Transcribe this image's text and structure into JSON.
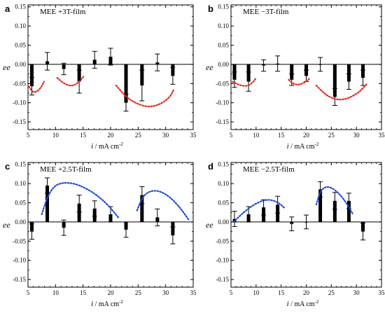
{
  "chart_data": [
    {
      "type": "bar",
      "letter": "a",
      "title": "MEE +3T-film",
      "ylabel": "ee",
      "xlabel_var": "i",
      "xlabel_unit": "/ mA cm",
      "xlabel_exp": "-2",
      "xlim": [
        5,
        35
      ],
      "ylim": [
        -0.17,
        0.155
      ],
      "xticks": [
        5,
        10,
        15,
        20,
        25,
        30,
        35
      ],
      "yticks": [
        -0.15,
        -0.1,
        -0.05,
        0.0,
        0.05,
        0.1,
        0.15
      ],
      "ytick_labels": [
        "-0.15",
        "-0.10",
        "-0.05",
        "0.00",
        "0.05",
        "0.10",
        "0.15"
      ],
      "points": [
        {
          "x": 5.7,
          "y": -0.057,
          "err": 0.023
        },
        {
          "x": 8.5,
          "y": 0.008,
          "err": 0.023
        },
        {
          "x": 11.5,
          "y": -0.012,
          "err": 0.015
        },
        {
          "x": 14.3,
          "y": -0.045,
          "err": 0.03
        },
        {
          "x": 17.1,
          "y": 0.012,
          "err": 0.022
        },
        {
          "x": 20.0,
          "y": 0.02,
          "err": 0.022
        },
        {
          "x": 22.8,
          "y": -0.1,
          "err": 0.022
        },
        {
          "x": 25.7,
          "y": -0.055,
          "err": 0.04
        },
        {
          "x": 28.5,
          "y": 0.005,
          "err": 0.022
        },
        {
          "x": 31.3,
          "y": -0.03,
          "err": 0.022
        }
      ],
      "fit_curves": [
        {
          "color": "#e8281a",
          "points": [
            [
              5.2,
              -0.058
            ],
            [
              5.8,
              -0.072
            ],
            [
              6.5,
              -0.072
            ],
            [
              7.3,
              -0.062
            ],
            [
              7.9,
              -0.045
            ]
          ]
        },
        {
          "color": "#e8281a",
          "points": [
            [
              10.3,
              -0.035
            ],
            [
              11.5,
              -0.05
            ],
            [
              12.8,
              -0.057
            ],
            [
              14.0,
              -0.05
            ],
            [
              15.2,
              -0.03
            ]
          ]
        },
        {
          "color": "#e8281a",
          "points": [
            [
              21.0,
              -0.055
            ],
            [
              22.8,
              -0.085
            ],
            [
              24.8,
              -0.103
            ],
            [
              27.0,
              -0.112
            ],
            [
              29.2,
              -0.103
            ],
            [
              30.8,
              -0.085
            ],
            [
              31.5,
              -0.065
            ]
          ]
        }
      ]
    },
    {
      "type": "bar",
      "letter": "b",
      "title": "MEE −3T-film",
      "ylabel": "ee",
      "xlabel_var": "i",
      "xlabel_unit": "/ mA cm",
      "xlabel_exp": "-2",
      "xlim": [
        5,
        35
      ],
      "ylim": [
        -0.17,
        0.155
      ],
      "xticks": [
        5,
        10,
        15,
        20,
        25,
        30,
        35
      ],
      "yticks": [
        -0.15,
        -0.1,
        -0.05,
        0.0,
        0.05,
        0.1,
        0.15
      ],
      "ytick_labels": [
        "-0.15",
        "-0.10",
        "-0.05",
        "0.00",
        "0.05",
        "0.10",
        "0.15"
      ],
      "points": [
        {
          "x": 5.7,
          "y": -0.04,
          "err": 0.02
        },
        {
          "x": 8.5,
          "y": -0.045,
          "err": 0.025
        },
        {
          "x": 11.5,
          "y": -0.003,
          "err": 0.015
        },
        {
          "x": 14.3,
          "y": 0.002,
          "err": 0.02
        },
        {
          "x": 17.1,
          "y": -0.04,
          "err": 0.015
        },
        {
          "x": 20.0,
          "y": -0.03,
          "err": 0.015
        },
        {
          "x": 22.8,
          "y": 0.0,
          "err": 0.018
        },
        {
          "x": 25.7,
          "y": -0.085,
          "err": 0.022
        },
        {
          "x": 28.5,
          "y": -0.045,
          "err": 0.02
        },
        {
          "x": 31.3,
          "y": -0.035,
          "err": 0.02
        }
      ],
      "fit_curves": [
        {
          "color": "#e8281a",
          "points": [
            [
              5.3,
              -0.045
            ],
            [
              6.8,
              -0.055
            ],
            [
              8.2,
              -0.057
            ],
            [
              9.3,
              -0.048
            ],
            [
              10.0,
              -0.036
            ]
          ]
        },
        {
          "color": "#e8281a",
          "points": [
            [
              16.5,
              -0.04
            ],
            [
              17.5,
              -0.052
            ],
            [
              18.7,
              -0.053
            ],
            [
              20.0,
              -0.045
            ],
            [
              20.8,
              -0.035
            ]
          ]
        },
        {
          "color": "#e8281a",
          "points": [
            [
              22.0,
              -0.055
            ],
            [
              23.5,
              -0.075
            ],
            [
              25.0,
              -0.088
            ],
            [
              26.8,
              -0.093
            ],
            [
              28.5,
              -0.088
            ],
            [
              30.5,
              -0.073
            ],
            [
              32.0,
              -0.052
            ]
          ]
        }
      ]
    },
    {
      "type": "bar",
      "letter": "c",
      "title": "MEE +2.5T-film",
      "ylabel": "ee",
      "xlabel_var": "i",
      "xlabel_unit": "/ mA cm",
      "xlabel_exp": "-2",
      "xlim": [
        5,
        35
      ],
      "ylim": [
        -0.17,
        0.155
      ],
      "xticks": [
        5,
        10,
        15,
        20,
        25,
        30,
        35
      ],
      "yticks": [
        -0.15,
        -0.1,
        -0.05,
        0.0,
        0.05,
        0.1,
        0.15
      ],
      "ytick_labels": [
        "-0.15",
        "-0.10",
        "-0.05",
        "0.00",
        "0.05",
        "0.10",
        "0.15"
      ],
      "points": [
        {
          "x": 5.7,
          "y": -0.025,
          "err": 0.02
        },
        {
          "x": 8.5,
          "y": 0.095,
          "err": 0.02
        },
        {
          "x": 11.5,
          "y": -0.015,
          "err": 0.02
        },
        {
          "x": 14.3,
          "y": 0.048,
          "err": 0.022
        },
        {
          "x": 17.1,
          "y": 0.035,
          "err": 0.02
        },
        {
          "x": 20.0,
          "y": 0.02,
          "err": 0.02
        },
        {
          "x": 22.8,
          "y": -0.02,
          "err": 0.02
        },
        {
          "x": 25.7,
          "y": 0.07,
          "err": 0.022
        },
        {
          "x": 28.5,
          "y": 0.012,
          "err": 0.022
        },
        {
          "x": 31.3,
          "y": -0.035,
          "err": 0.022
        }
      ],
      "fit_curves": [
        {
          "color": "#1f49d8",
          "points": [
            [
              7.5,
              0.02
            ],
            [
              8.5,
              0.065
            ],
            [
              9.8,
              0.095
            ],
            [
              11.5,
              0.103
            ],
            [
              13.5,
              0.1
            ],
            [
              15.5,
              0.088
            ],
            [
              17.5,
              0.07
            ],
            [
              19.5,
              0.045
            ],
            [
              21.5,
              0.01
            ]
          ]
        },
        {
          "color": "#1f49d8",
          "points": [
            [
              24.8,
              0.03
            ],
            [
              25.8,
              0.065
            ],
            [
              27.0,
              0.08
            ],
            [
              28.5,
              0.082
            ],
            [
              30.0,
              0.073
            ],
            [
              31.5,
              0.055
            ],
            [
              33.0,
              0.03
            ],
            [
              34.2,
              0.005
            ]
          ]
        }
      ]
    },
    {
      "type": "bar",
      "letter": "d",
      "title": "MEE −2.5T-film",
      "ylabel": "ee",
      "xlabel_var": "i",
      "xlabel_unit": "/ mA cm",
      "xlabel_exp": "-2",
      "xlim": [
        5,
        35
      ],
      "ylim": [
        -0.17,
        0.155
      ],
      "xticks": [
        5,
        10,
        15,
        20,
        25,
        30,
        35
      ],
      "yticks": [
        -0.15,
        -0.1,
        -0.05,
        0.0,
        0.05,
        0.1,
        0.15
      ],
      "ytick_labels": [
        "-0.15",
        "-0.10",
        "-0.05",
        "0.00",
        "0.05",
        "0.10",
        "0.15"
      ],
      "points": [
        {
          "x": 5.7,
          "y": 0.008,
          "err": 0.02
        },
        {
          "x": 8.5,
          "y": 0.02,
          "err": 0.02
        },
        {
          "x": 11.5,
          "y": 0.038,
          "err": 0.02
        },
        {
          "x": 14.3,
          "y": 0.045,
          "err": 0.022
        },
        {
          "x": 17.1,
          "y": -0.005,
          "err": 0.018
        },
        {
          "x": 20.0,
          "y": 0.0,
          "err": 0.018
        },
        {
          "x": 22.8,
          "y": 0.085,
          "err": 0.02
        },
        {
          "x": 25.7,
          "y": 0.055,
          "err": 0.022
        },
        {
          "x": 28.5,
          "y": 0.055,
          "err": 0.02
        },
        {
          "x": 31.3,
          "y": -0.025,
          "err": 0.022
        }
      ],
      "fit_curves": [
        {
          "color": "#1f49d8",
          "points": [
            [
              5.5,
              0.0
            ],
            [
              7.5,
              0.025
            ],
            [
              9.5,
              0.045
            ],
            [
              11.5,
              0.057
            ],
            [
              13.0,
              0.058
            ],
            [
              14.5,
              0.05
            ],
            [
              15.8,
              0.035
            ]
          ]
        },
        {
          "color": "#1f49d8",
          "points": [
            [
              22.0,
              0.045
            ],
            [
              22.8,
              0.08
            ],
            [
              23.8,
              0.092
            ],
            [
              25.0,
              0.09
            ],
            [
              26.5,
              0.075
            ],
            [
              28.0,
              0.05
            ],
            [
              29.3,
              0.02
            ]
          ]
        }
      ]
    }
  ]
}
